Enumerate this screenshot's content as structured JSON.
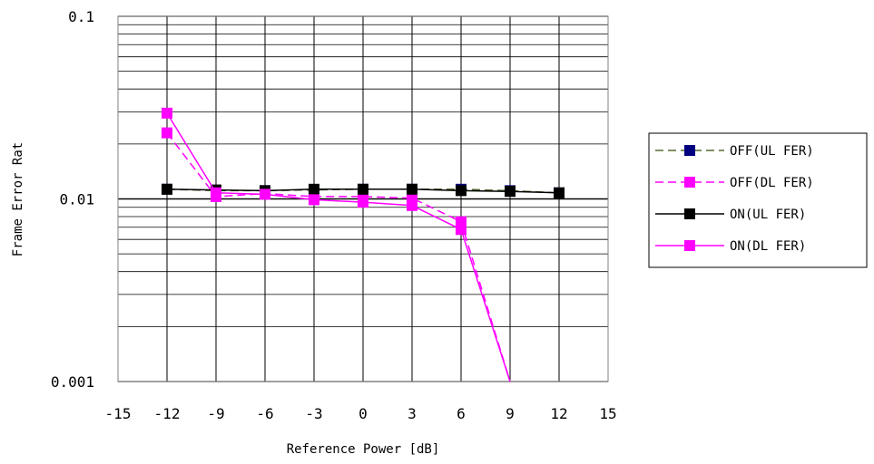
{
  "chart_data": {
    "type": "line",
    "title": "",
    "xlabel": "Reference Power [dB]",
    "ylabel": "Frame Error Rat",
    "xlim": [
      -15,
      15
    ],
    "ylim": [
      0.001,
      0.1
    ],
    "y_scale": "log",
    "x_ticks": [
      "-15",
      "-12",
      "-9",
      "-6",
      "-3",
      "0",
      "3",
      "6",
      "9",
      "12",
      "15"
    ],
    "y_ticks": [
      "0.1",
      "0.01",
      "0.001"
    ],
    "grid": true,
    "legend_position": "right",
    "series": [
      {
        "name": "OFF(UL FER)",
        "color": "#000080",
        "line_color": "#556b2f",
        "dashed": true,
        "x": [
          -12,
          -9,
          -6,
          -3,
          0,
          3,
          6,
          9,
          12
        ],
        "y": [
          0.0113,
          0.0111,
          0.0111,
          0.0112,
          0.0113,
          0.0113,
          0.0113,
          0.0111,
          0.0108
        ]
      },
      {
        "name": "OFF(DL FER)",
        "color": "#ff00ff",
        "line_color": "#ff00ff",
        "dashed": true,
        "x": [
          -12,
          -9,
          -6,
          -3,
          0,
          3,
          6,
          9
        ],
        "y": [
          0.023,
          0.0103,
          0.0107,
          0.0103,
          0.0103,
          0.0101,
          0.0075,
          0.001
        ]
      },
      {
        "name": "ON(UL FER)",
        "color": "#000000",
        "line_color": "#000000",
        "dashed": false,
        "x": [
          -12,
          -9,
          -6,
          -3,
          0,
          3,
          6,
          9,
          12
        ],
        "y": [
          0.0113,
          0.0112,
          0.0111,
          0.0113,
          0.0113,
          0.0113,
          0.0111,
          0.011,
          0.0108
        ]
      },
      {
        "name": "ON(DL FER)",
        "color": "#ff00ff",
        "line_color": "#ff00ff",
        "dashed": false,
        "x": [
          -12,
          -9,
          -6,
          -3,
          0,
          3,
          6,
          9
        ],
        "y": [
          0.0295,
          0.0108,
          0.0106,
          0.0099,
          0.0096,
          0.0092,
          0.0068,
          0.001
        ]
      }
    ]
  }
}
